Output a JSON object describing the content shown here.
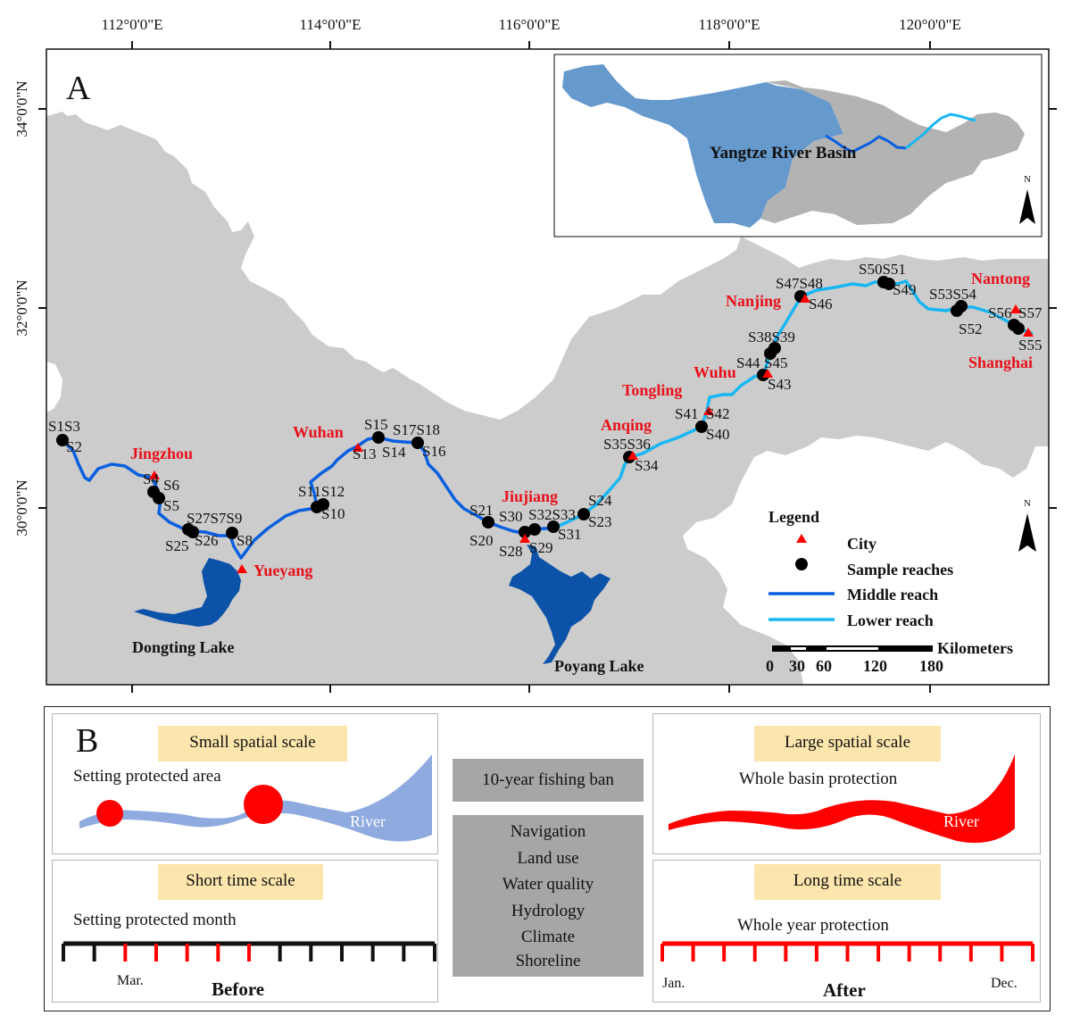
{
  "panel_a": {
    "label": "A",
    "axes": {
      "longitude_ticks": [
        "112°0'0\"E",
        "114°0'0\"E",
        "116°0'0\"E",
        "118°0'0\"E",
        "120°0'0\"E"
      ],
      "latitude_ticks": [
        "34°0'0\"N",
        "32°0'0\"N",
        "30°0'0\"N"
      ]
    },
    "inset": {
      "title": "Yangtze River Basin",
      "north_label": "N"
    },
    "north_label": "N",
    "cities": [
      "Jingzhou",
      "Yueyang",
      "Wuhan",
      "Jiujiang",
      "Anqing",
      "Tongling",
      "Wuhu",
      "Nanjing",
      "Nantong",
      "Shanghai"
    ],
    "lakes": [
      "Dongting Lake",
      "Poyang Lake"
    ],
    "sample_labels": [
      "S1S3",
      "S2",
      "S4",
      "S6",
      "S5",
      "S27S7S9",
      "S25",
      "S26",
      "S8",
      "S11S12",
      "S10",
      "S13",
      "S15",
      "S14",
      "S17S18",
      "S16",
      "S21",
      "S20",
      "S30",
      "S32S33",
      "S28",
      "S29",
      "S31",
      "S24",
      "S23",
      "S35S36",
      "S34",
      "S41",
      "S42",
      "S40",
      "S44",
      "S45",
      "S43",
      "S38S39",
      "S47S48",
      "S46",
      "S50S51",
      "S49",
      "S53S54",
      "S52",
      "S56",
      "S57",
      "S55"
    ],
    "legend": {
      "title": "Legend",
      "items": [
        "City",
        "Sample reaches",
        "Middle reach",
        "Lower reach"
      ]
    },
    "scale_bar": {
      "unit": "Kilometers",
      "ticks": [
        "0",
        "30",
        "60",
        "120",
        "180"
      ]
    },
    "colors": {
      "land": "#cccccc",
      "middle_reach": "#0a5fe0",
      "lower_reach": "#18b6f2",
      "lake": "#0b52a8",
      "city": "#ff0000",
      "upper_basin": "#6699cc",
      "lower_basin": "#b3b3b3"
    }
  },
  "panel_b": {
    "label": "B",
    "center": {
      "ban": "10-year fishing ban",
      "factors": [
        "Navigation",
        "Land use",
        "Water quality",
        "Hydrology",
        "Climate",
        "Shoreline"
      ]
    },
    "before": {
      "spatial_tag": "Small spatial scale",
      "spatial_text": "Setting protected area",
      "river_label": "River",
      "time_tag": "Short time scale",
      "time_text": "Setting protected month",
      "month_label": "Mar.",
      "caption": "Before",
      "protected_months": [
        3,
        4,
        5,
        6,
        7
      ]
    },
    "after": {
      "spatial_tag": "Large spatial scale",
      "spatial_text": "Whole basin protection",
      "river_label": "River",
      "time_tag": "Long time scale",
      "time_text": "Whole year protection",
      "start_label": "Jan.",
      "end_label": "Dec.",
      "caption": "After",
      "protected_months": [
        1,
        2,
        3,
        4,
        5,
        6,
        7,
        8,
        9,
        10,
        11,
        12
      ]
    }
  }
}
